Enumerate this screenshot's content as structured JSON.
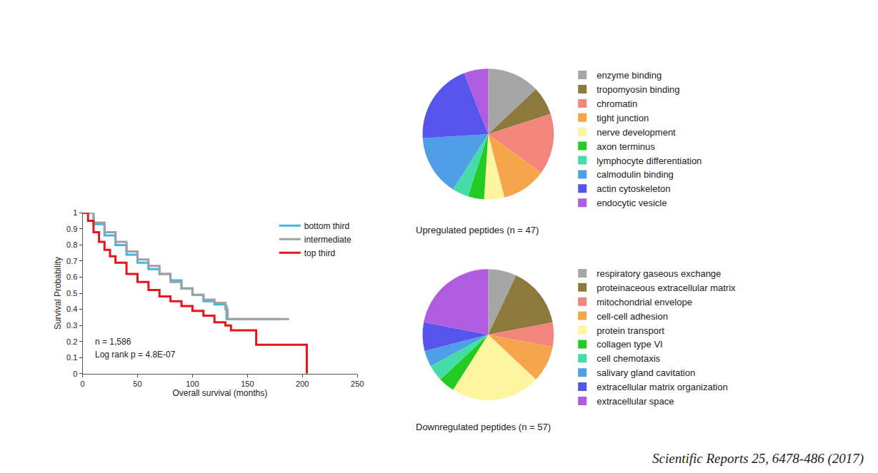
{
  "chart_data": [
    {
      "type": "line",
      "xlabel": "Overall survival (months)",
      "ylabel": "Survival Probability",
      "annotations": [
        "n = 1,586",
        "Log rank p = 4.8E-07"
      ],
      "xlim": [
        0,
        250
      ],
      "xticks": [
        0,
        50,
        100,
        150,
        200,
        250
      ],
      "ylim": [
        0,
        1
      ],
      "yticks": [
        0,
        0.1,
        0.2,
        0.3,
        0.4,
        0.5,
        0.6,
        0.7,
        0.8,
        0.9,
        1
      ],
      "grid": false,
      "legend": "upper right",
      "line_style": "step",
      "series": [
        {
          "name": "bottom third",
          "color": "#3fb7e8",
          "x": [
            0,
            10,
            20,
            30,
            40,
            50,
            60,
            70,
            80,
            90,
            100,
            110,
            120,
            130,
            131,
            180
          ],
          "values": [
            1,
            0.93,
            0.86,
            0.8,
            0.74,
            0.69,
            0.65,
            0.62,
            0.58,
            0.53,
            0.49,
            0.45,
            0.43,
            0.42,
            0.34,
            0.34
          ]
        },
        {
          "name": "intermediate",
          "color": "#a0a0a0",
          "x": [
            0,
            10,
            20,
            30,
            40,
            50,
            60,
            70,
            80,
            90,
            100,
            110,
            120,
            130,
            132,
            188
          ],
          "values": [
            1,
            0.94,
            0.88,
            0.82,
            0.76,
            0.71,
            0.67,
            0.62,
            0.57,
            0.53,
            0.49,
            0.46,
            0.44,
            0.4,
            0.34,
            0.34
          ]
        },
        {
          "name": "top third",
          "color": "#e8141c",
          "x": [
            0,
            5,
            10,
            15,
            20,
            25,
            30,
            40,
            50,
            60,
            70,
            80,
            90,
            100,
            110,
            120,
            130,
            135,
            158,
            204
          ],
          "values": [
            1,
            0.95,
            0.88,
            0.82,
            0.77,
            0.73,
            0.69,
            0.62,
            0.57,
            0.52,
            0.48,
            0.45,
            0.42,
            0.39,
            0.36,
            0.32,
            0.3,
            0.27,
            0.18,
            0
          ]
        }
      ]
    },
    {
      "type": "pie",
      "title": "Upregulated peptides (n = 47)",
      "categories": [
        "enzyme binding",
        "tropomyosin binding",
        "chromatin",
        "tight junction",
        "nerve development",
        "axon terminus",
        "lymphocyte differentiation",
        "calmodulin binding",
        "actin cytoskeleton",
        "endocytic vesicle"
      ],
      "values": [
        13,
        7,
        15,
        11,
        5,
        4,
        4,
        15,
        20,
        6
      ],
      "colors": [
        "#a6a6a6",
        "#8c7a3c",
        "#f4857d",
        "#f5a54a",
        "#fff5a0",
        "#22cc22",
        "#44ddaa",
        "#4f9fe8",
        "#5555ee",
        "#b05ce0"
      ],
      "legend": "right",
      "data_labels": false
    },
    {
      "type": "pie",
      "title": "Downregulated peptides (n = 57)",
      "categories": [
        "respiratory gaseous exchange",
        "proteinaceous extracellular matrix",
        "mitochondrial envelope",
        "cell-cell adhesion",
        "protein transport",
        "collagen type VI",
        "cell chemotaxis",
        "salivary gland cavitation",
        "extracellular matrix organization",
        "extracellular space"
      ],
      "values": [
        7,
        15,
        6,
        9,
        22,
        4,
        4,
        4,
        7,
        22
      ],
      "colors": [
        "#a6a6a6",
        "#8c7a3c",
        "#f4857d",
        "#f5a54a",
        "#fff5a0",
        "#22cc22",
        "#44ddaa",
        "#4f9fe8",
        "#5555ee",
        "#b05ce0"
      ],
      "legend": "right",
      "data_labels": false
    }
  ],
  "source": "Scientific Reports 25, 6478-486 (2017)"
}
